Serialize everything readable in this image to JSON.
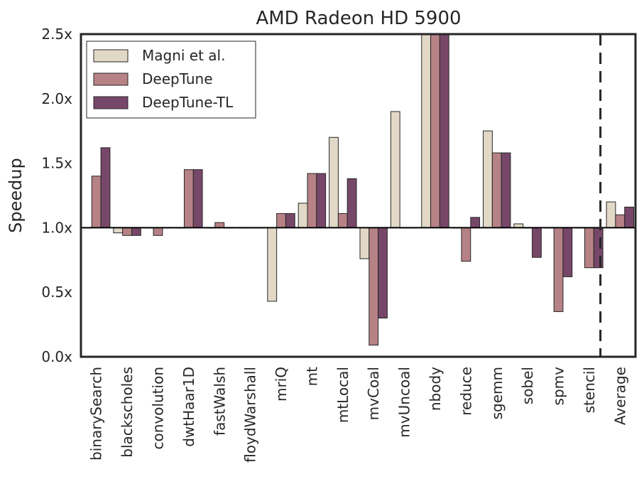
{
  "chart_data": {
    "type": "bar",
    "title": "AMD Radeon HD 5900",
    "xlabel": "",
    "ylabel": "Speedup",
    "ylim": [
      0.0,
      2.5
    ],
    "baseline": 1.0,
    "yticks": [
      "0.0x",
      "0.5x",
      "1.0x",
      "1.5x",
      "2.0x",
      "2.5x"
    ],
    "grid": false,
    "legend_position": "top-left",
    "categories": [
      "binarySearch",
      "blackscholes",
      "convolution",
      "dwtHaar1D",
      "fastWalsh",
      "floydWarshall",
      "mriQ",
      "mt",
      "mtLocal",
      "mvCoal",
      "mvUncoal",
      "nbody",
      "reduce",
      "sgemm",
      "sobel",
      "spmv",
      "stencil",
      "Average"
    ],
    "series": [
      {
        "name": "Magni et al.",
        "color": "#e2d8c6",
        "values": [
          1.0,
          0.96,
          1.0,
          1.0,
          1.0,
          1.0,
          0.43,
          1.19,
          1.7,
          0.76,
          1.9,
          2.5,
          1.0,
          1.75,
          1.03,
          1.0,
          1.0,
          1.2
        ]
      },
      {
        "name": "DeepTune",
        "color": "#b68286",
        "values": [
          1.4,
          0.94,
          0.94,
          1.45,
          1.04,
          1.0,
          1.11,
          1.42,
          1.11,
          0.09,
          1.0,
          2.5,
          0.74,
          1.58,
          1.0,
          0.35,
          0.69,
          1.1
        ]
      },
      {
        "name": "DeepTune-TL",
        "color": "#774769",
        "values": [
          1.62,
          0.94,
          1.0,
          1.45,
          1.0,
          1.0,
          1.11,
          1.42,
          1.38,
          0.3,
          1.0,
          2.5,
          1.08,
          1.58,
          0.77,
          0.62,
          0.69,
          1.16
        ]
      }
    ]
  }
}
